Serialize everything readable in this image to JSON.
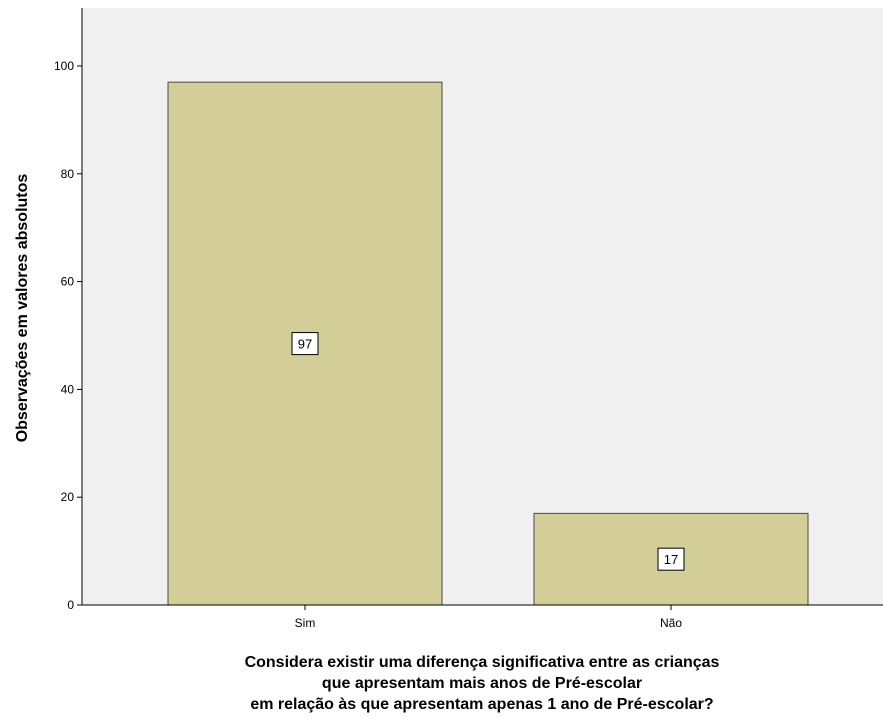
{
  "chart_data": {
    "type": "bar",
    "categories": [
      "Sim",
      "Não"
    ],
    "values": [
      97,
      17
    ],
    "data_labels": [
      "97",
      "17"
    ],
    "ylabel": "Observações em valores absolutos",
    "xlabel_lines": [
      "Considera existir uma diferença significativa entre as crianças",
      "que apresentam mais anos de Pré-escolar",
      "em relação às que apresentam apenas 1 ano de Pré-escolar?"
    ],
    "ylim": [
      0,
      100
    ],
    "yticks": [
      "0",
      "20",
      "40",
      "60",
      "80",
      "100"
    ],
    "grid": false,
    "colors": {
      "plot_background": "#f0f0f0",
      "bar_fill": "#d3ce97",
      "bar_stroke": "#4a4a4a",
      "axis": "#000000"
    }
  }
}
